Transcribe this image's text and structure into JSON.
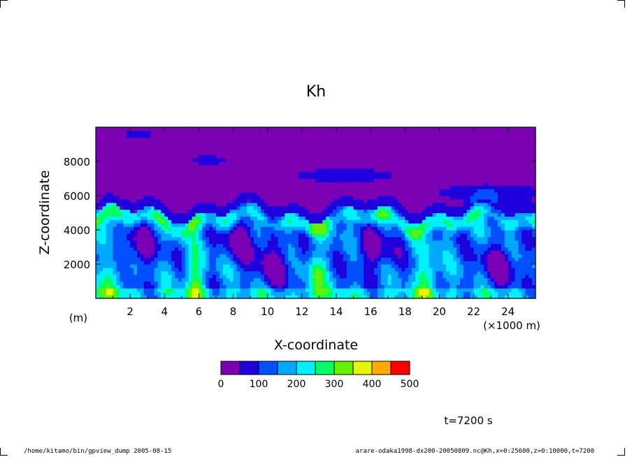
{
  "chart_data": {
    "type": "heatmap",
    "title": "Kh",
    "xlabel": "X-coordinate",
    "ylabel": "Z-coordinate",
    "x_unit": "(m)",
    "x_scale_label": "(×1000 m)",
    "x_range": [
      0,
      25.6
    ],
    "y_range": [
      0,
      10000
    ],
    "x_ticks": [
      2,
      4,
      6,
      8,
      10,
      12,
      14,
      16,
      18,
      20,
      22,
      24
    ],
    "y_ticks": [
      2000,
      4000,
      6000,
      8000
    ],
    "color_levels": [
      0,
      50,
      100,
      150,
      200,
      250,
      300,
      350,
      400,
      450,
      500
    ],
    "colorbar_ticks": [
      0,
      100,
      200,
      300,
      400,
      500
    ],
    "colors": [
      "#7b00b4",
      "#1e00dc",
      "#0050ff",
      "#00a8ff",
      "#00f0ff",
      "#00ff64",
      "#64f000",
      "#e6f500",
      "#ffaa00",
      "#ff0000",
      "#ffaaaa"
    ],
    "time_label": "t=7200 s"
  },
  "footer": {
    "left": "/home/kitamo/bin/gpview_dump  2005-08-15",
    "right": "arare-odaka1998-dx200-20050809.nc@Kh,x=0:25600,z=0:10000,t=7200"
  }
}
